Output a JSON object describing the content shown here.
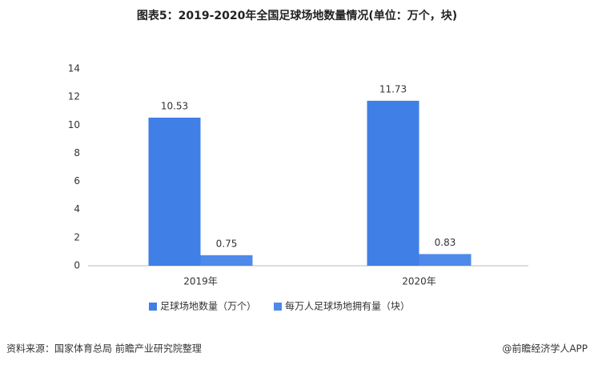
{
  "chart_data": {
    "type": "bar",
    "title": "图表5：2019-2020年全国足球场地数量情况(单位：万个，块)",
    "categories": [
      "2019年",
      "2020年"
    ],
    "series": [
      {
        "name": "足球场地数量（万个）",
        "color": "#3f7fe6",
        "values": [
          10.53,
          11.73
        ]
      },
      {
        "name": "每万人足球场地拥有量（块）",
        "color": "#4d8ae9",
        "values": [
          0.75,
          0.83
        ]
      }
    ],
    "ylim": [
      0,
      14
    ],
    "yticks": [
      0,
      2,
      4,
      6,
      8,
      10,
      12,
      14
    ],
    "grid": false,
    "legend": "bottom",
    "source": "资料来源：国家体育总局 前瞻产业研究院整理",
    "credit": "@前瞻经济学人APP"
  }
}
